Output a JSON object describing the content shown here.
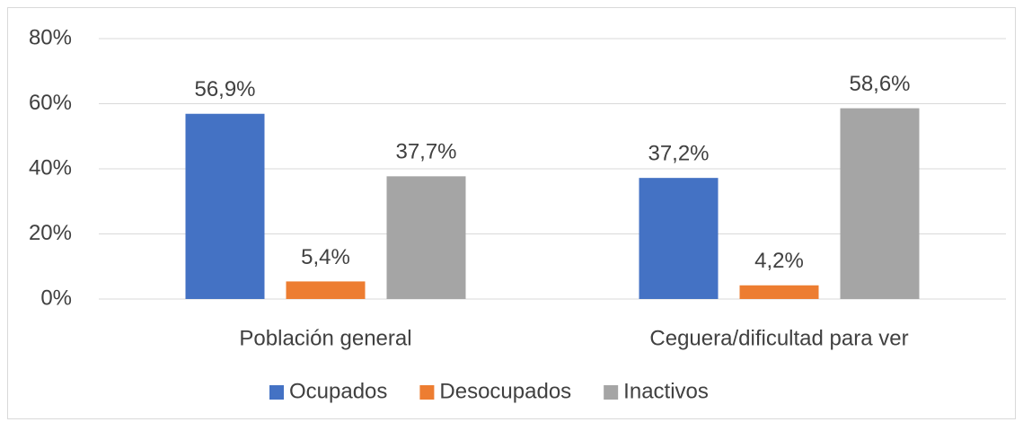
{
  "chart_data": {
    "type": "bar",
    "categories": [
      "Población general",
      "Ceguera/dificultad para ver"
    ],
    "series": [
      {
        "name": "Ocupados",
        "color": "#4472c4",
        "values": [
          56.9,
          37.2
        ],
        "value_labels": [
          "56,9%",
          "37,2%"
        ]
      },
      {
        "name": "Desocupados",
        "color": "#ed7d31",
        "values": [
          5.4,
          4.2
        ],
        "value_labels": [
          "5,4%",
          "4,2%"
        ]
      },
      {
        "name": "Inactivos",
        "color": "#a5a5a5",
        "values": [
          37.7,
          58.6
        ],
        "value_labels": [
          "37,7%",
          "58,6%"
        ]
      }
    ],
    "ylim": [
      0,
      80
    ],
    "yticks": [
      {
        "value": 0,
        "label": "0%"
      },
      {
        "value": 20,
        "label": "20%"
      },
      {
        "value": 40,
        "label": "40%"
      },
      {
        "value": 60,
        "label": "60%"
      },
      {
        "value": 80,
        "label": "80%"
      }
    ],
    "grid": true,
    "legend": "bottom"
  }
}
